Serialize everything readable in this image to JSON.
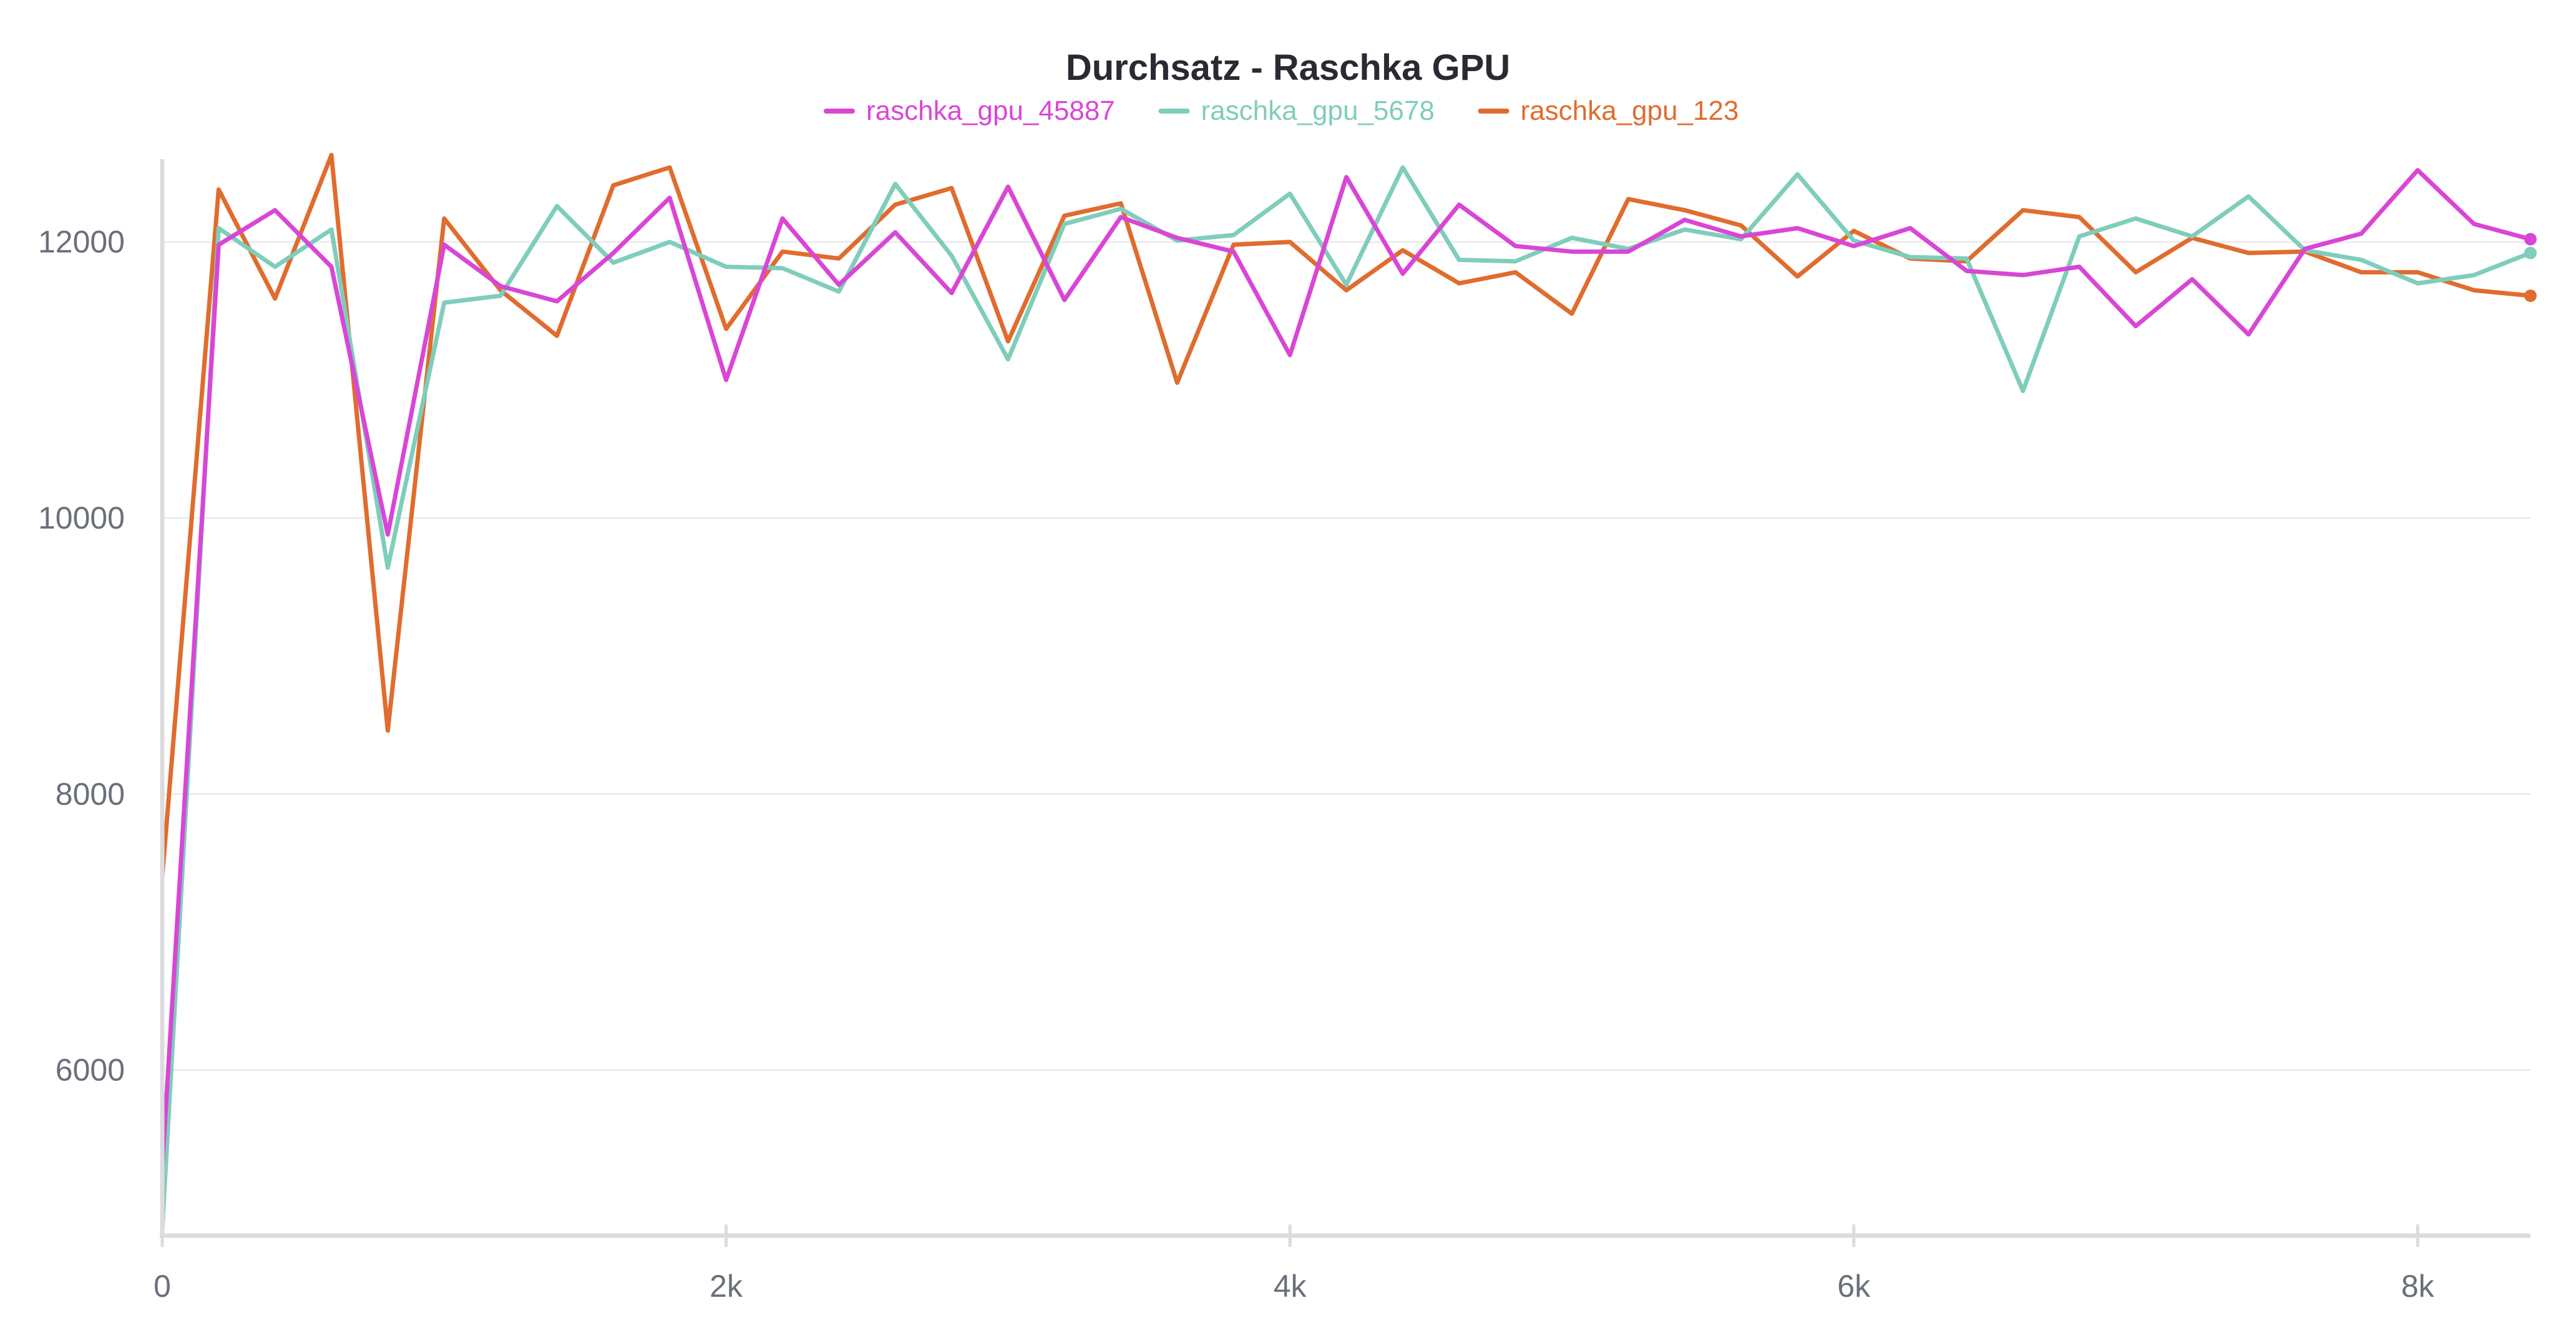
{
  "chart_data": {
    "type": "line",
    "title": "Durchsatz - Raschka GPU",
    "xlabel": "",
    "ylabel": "",
    "xlim": [
      0,
      8400
    ],
    "ylim": [
      4800,
      12600
    ],
    "grid": true,
    "legend_position": "top-center",
    "x_ticks": [
      {
        "value": 0,
        "label": "0"
      },
      {
        "value": 2000,
        "label": "2k"
      },
      {
        "value": 4000,
        "label": "4k"
      },
      {
        "value": 6000,
        "label": "6k"
      },
      {
        "value": 8000,
        "label": "8k"
      }
    ],
    "y_ticks": [
      {
        "value": 6000,
        "label": "6000"
      },
      {
        "value": 8000,
        "label": "8000"
      },
      {
        "value": 10000,
        "label": "10000"
      },
      {
        "value": 12000,
        "label": "12000"
      }
    ],
    "x": [
      0,
      200,
      400,
      600,
      800,
      1000,
      1200,
      1400,
      1600,
      1800,
      2000,
      2200,
      2400,
      2600,
      2800,
      3000,
      3200,
      3400,
      3600,
      3800,
      4000,
      4200,
      4400,
      4600,
      4800,
      5000,
      5200,
      5400,
      5600,
      5800,
      6000,
      6200,
      6400,
      6600,
      6800,
      7000,
      7200,
      7400,
      7600,
      7800,
      8000,
      8200,
      8400
    ],
    "series": [
      {
        "name": "raschka_gpu_45887",
        "color": "#d946d6",
        "values": [
          5300,
          11980,
          12230,
          11820,
          9880,
          11980,
          11680,
          11570,
          11920,
          12320,
          11000,
          12170,
          11690,
          12070,
          11630,
          12400,
          11580,
          12180,
          12030,
          11930,
          11180,
          12470,
          11770,
          12270,
          11970,
          11930,
          11930,
          12160,
          12040,
          12100,
          11970,
          12100,
          11790,
          11760,
          11820,
          11390,
          11730,
          11330,
          11950,
          12060,
          12520,
          12130,
          12020
        ]
      },
      {
        "name": "raschka_gpu_5678",
        "color": "#7fcdbb",
        "values": [
          4850,
          12100,
          11820,
          12090,
          9640,
          11560,
          11610,
          12260,
          11850,
          12000,
          11820,
          11810,
          11640,
          12420,
          11900,
          11150,
          12130,
          12240,
          12010,
          12050,
          12350,
          11690,
          12540,
          11870,
          11860,
          12030,
          11950,
          12090,
          12020,
          12490,
          12010,
          11890,
          11880,
          10920,
          12040,
          12170,
          12040,
          12330,
          11940,
          11870,
          11700,
          11760,
          11920
        ]
      },
      {
        "name": "raschka_gpu_123",
        "color": "#e06c2e",
        "values": [
          7400,
          12380,
          11590,
          12630,
          8460,
          12170,
          11650,
          11320,
          12410,
          12540,
          11370,
          11930,
          11880,
          12270,
          12390,
          11280,
          12190,
          12280,
          10980,
          11980,
          12000,
          11650,
          11940,
          11700,
          11780,
          11480,
          12310,
          12230,
          12120,
          11750,
          12080,
          11880,
          11860,
          12230,
          12180,
          11780,
          12030,
          11920,
          11930,
          11780,
          11780,
          11650,
          11610
        ]
      }
    ]
  }
}
